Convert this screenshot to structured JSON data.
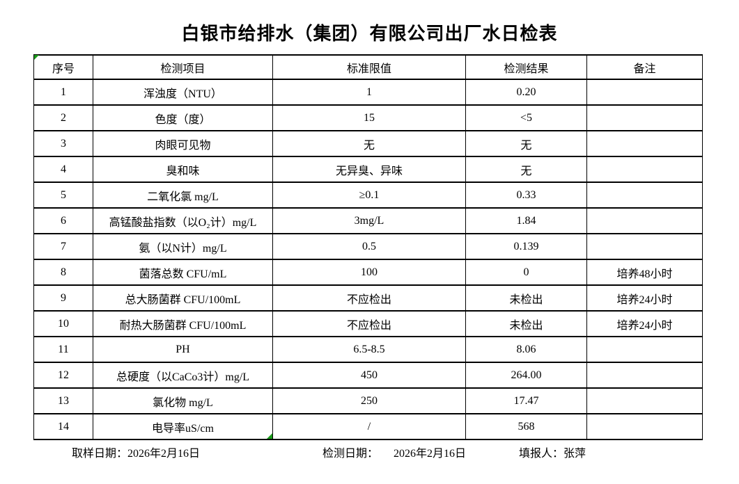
{
  "title": "白银市给排水（集团）有限公司出厂水日检表",
  "table": {
    "headers": [
      "序号",
      "检测项目",
      "标准限值",
      "检测结果",
      "备注"
    ],
    "rows": [
      [
        "1",
        "浑浊度（NTU）",
        "1",
        "0.20",
        ""
      ],
      [
        "2",
        "色度（度）",
        "15",
        "<5",
        ""
      ],
      [
        "3",
        "肉眼可见物",
        "无",
        "无",
        ""
      ],
      [
        "4",
        "臭和味",
        "无异臭、异味",
        "无",
        ""
      ],
      [
        "5",
        "二氧化氯 mg/L",
        "≥0.1",
        "0.33",
        ""
      ],
      [
        "6",
        "高锰酸盐指数（以O₂计）mg/L",
        "3mg/L",
        "1.84",
        ""
      ],
      [
        "7",
        "氨（以N计）mg/L",
        "0.5",
        "0.139",
        ""
      ],
      [
        "8",
        "菌落总数 CFU/mL",
        "100",
        "0",
        "培养48小时"
      ],
      [
        "9",
        "总大肠菌群 CFU/100mL",
        "不应检出",
        "未检出",
        "培养24小时"
      ],
      [
        "10",
        "耐热大肠菌群 CFU/100mL",
        "不应检出",
        "未检出",
        "培养24小时"
      ],
      [
        "11",
        "PH",
        "6.5-8.5",
        "8.06",
        ""
      ],
      [
        "12",
        "总硬度（以CaCo3计）mg/L",
        "450",
        "264.00",
        ""
      ],
      [
        "13",
        "氯化物 mg/L",
        "250",
        "17.47",
        ""
      ],
      [
        "14",
        "电导率uS/cm",
        "/",
        "568",
        ""
      ]
    ]
  },
  "footer": {
    "sample_date_label": "取样日期：",
    "sample_date": "2026年2月16日",
    "test_date_label": "检测日期：",
    "test_date": "2026年2月16日",
    "reporter_label": "填报人：",
    "reporter": "张萍"
  },
  "colors": {
    "border": "#000000",
    "text": "#000000",
    "page_bg": "#ffffff",
    "artifact_marker_green": "#1a9a1a"
  }
}
